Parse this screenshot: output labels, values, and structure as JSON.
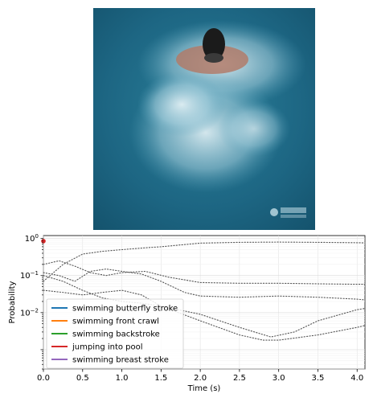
{
  "frame": {
    "description_icon": "video-frame-swimmer",
    "watermark_icon": "broadcaster-logo-icon"
  },
  "chart_data": {
    "type": "line",
    "xlabel": "Time (s)",
    "ylabel": "Probability",
    "y_scale": "log",
    "xlim": [
      0,
      4.1
    ],
    "ylim": [
      0.0003,
      1.2
    ],
    "x_ticks": [
      0.0,
      0.5,
      1.0,
      1.5,
      2.0,
      2.5,
      3.0,
      3.5,
      4.0
    ],
    "x_tick_labels": [
      "0.0",
      "0.5",
      "1.0",
      "1.5",
      "2.0",
      "2.5",
      "3.0",
      "3.5",
      "4.0"
    ],
    "y_ticks": [
      1,
      0.1,
      0.01
    ],
    "y_tick_labels": [
      "10^0",
      "10^-1",
      "10^-2"
    ],
    "grid": true,
    "legend_position": "lower-left",
    "series": [
      {
        "name": "swimming butterfly stroke",
        "color": "#1f77b4",
        "x": [
          0.0,
          0.25,
          0.5,
          0.75,
          1.0,
          1.25,
          1.5,
          2.0,
          2.5,
          3.0,
          3.5,
          4.0,
          4.1
        ],
        "values": [
          0.07,
          0.2,
          0.38,
          0.45,
          0.5,
          0.55,
          0.6,
          0.75,
          0.79,
          0.8,
          0.79,
          0.77,
          0.76
        ]
      },
      {
        "name": "swimming front crawl",
        "color": "#ff7f0e",
        "x": [
          0.0,
          0.2,
          0.4,
          0.6,
          0.8,
          1.0,
          1.3,
          1.6,
          2.0,
          2.5,
          3.0,
          3.5,
          4.0,
          4.1
        ],
        "values": [
          0.2,
          0.25,
          0.18,
          0.12,
          0.1,
          0.12,
          0.13,
          0.09,
          0.065,
          0.062,
          0.062,
          0.06,
          0.058,
          0.058
        ]
      },
      {
        "name": "swimming backstroke",
        "color": "#2ca02c",
        "x": [
          0.0,
          0.2,
          0.4,
          0.6,
          0.8,
          1.0,
          1.25,
          1.5,
          1.8,
          2.0,
          2.5,
          3.0,
          3.5,
          4.0,
          4.1
        ],
        "values": [
          0.12,
          0.1,
          0.07,
          0.13,
          0.15,
          0.13,
          0.11,
          0.07,
          0.035,
          0.028,
          0.026,
          0.028,
          0.026,
          0.023,
          0.022
        ]
      },
      {
        "name": "jumping into pool",
        "color": "#d62728",
        "x": [
          0.0,
          0.25,
          0.5,
          0.75,
          1.0,
          1.25,
          1.5,
          2.0,
          2.5,
          2.8,
          3.0,
          3.5,
          4.0,
          4.1
        ],
        "values": [
          0.04,
          0.035,
          0.03,
          0.035,
          0.04,
          0.03,
          0.015,
          0.006,
          0.0025,
          0.0018,
          0.0018,
          0.0025,
          0.004,
          0.0045
        ]
      },
      {
        "name": "swimming breast stroke",
        "color": "#9467bd",
        "x": [
          0.0,
          0.25,
          0.5,
          0.75,
          1.0,
          1.25,
          1.5,
          2.0,
          2.5,
          2.9,
          3.2,
          3.5,
          4.0,
          4.1
        ],
        "values": [
          0.1,
          0.07,
          0.04,
          0.025,
          0.02,
          0.018,
          0.015,
          0.009,
          0.004,
          0.0022,
          0.003,
          0.006,
          0.012,
          0.013
        ]
      }
    ],
    "marker": {
      "x": 0.0,
      "y": 0.85,
      "color": "#d62728"
    }
  }
}
